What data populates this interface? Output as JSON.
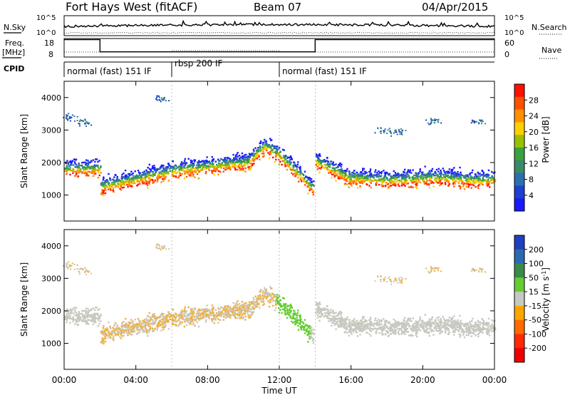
{
  "header": {
    "radar": "Fort Hays West (fitACF)",
    "beam": "Beam 07",
    "date": "04/Apr/2015"
  },
  "chart_data": [
    {
      "type": "line",
      "name": "noise-panel",
      "left_label": "N.Sky",
      "right_label": "N.Search",
      "left_ticks": [
        "10^5",
        "10^0"
      ],
      "right_ticks": [
        "10^5",
        "10^0"
      ]
    },
    {
      "type": "line",
      "name": "frequency-nave-panel",
      "left_label_1": "Freq.",
      "left_label_2": "[MHz]",
      "right_label": "Nave",
      "left_ticks": [
        18,
        8
      ],
      "right_ticks": [
        60,
        0
      ],
      "freq_ylim": [
        8,
        18
      ],
      "freq_steps": [
        {
          "t_start": 0,
          "t_end": 2,
          "mhz": 17.4
        },
        {
          "t_start": 2,
          "t_end": 14,
          "mhz": 10.8
        },
        {
          "t_start": 14,
          "t_end": 24,
          "mhz": 17.4
        }
      ]
    },
    {
      "type": "table",
      "name": "cpid-bar",
      "label": "CPID",
      "segments": [
        {
          "t_start": 0,
          "t_end": 6,
          "text": "normal (fast) 151 IF"
        },
        {
          "t_start": 6,
          "t_end": 12,
          "text": "rbsp 200 IF"
        },
        {
          "t_start": 12,
          "t_end": 24,
          "text": "normal (fast) 151 IF"
        }
      ]
    },
    {
      "type": "heatmap",
      "name": "power-panel",
      "ylabel": "Slant Range [km]",
      "ylim": [
        200,
        4500
      ],
      "yticks": [
        1000,
        2000,
        3000,
        4000
      ],
      "colorbar_label": "Power [dB]",
      "colorbar_ticks": [
        28,
        24,
        20,
        16,
        12,
        8,
        4
      ],
      "colorbar_range": [
        0,
        32
      ],
      "colorbar_colors": [
        "#1a1aff",
        "#1f3fd0",
        "#2a6fb0",
        "#3a8a6a",
        "#3aa040",
        "#9ac000",
        "#ffd000",
        "#ff9000",
        "#ff5000",
        "#ff1000"
      ]
    },
    {
      "type": "heatmap",
      "name": "velocity-panel",
      "ylabel": "Slant Range [km]",
      "ylim": [
        200,
        4500
      ],
      "yticks": [
        1000,
        2000,
        3000,
        4000
      ],
      "colorbar_label": "Velocity [m s",
      "colorbar_label_sup": "-1",
      "colorbar_label_end": "]",
      "colorbar_ticks": [
        "200",
        "100",
        "50",
        "15",
        "-15",
        "-50",
        "-100",
        "-200"
      ],
      "colorbar_colors": [
        "#2040c0",
        "#2a6ab0",
        "#3a8a4a",
        "#66cc33",
        "#c8c8c0",
        "#ffa500",
        "#ff6a00",
        "#ff2a00",
        "#ee0000"
      ]
    }
  ],
  "time_axis": {
    "label": "Time UT",
    "ticks": [
      "00:00",
      "04:00",
      "08:00",
      "12:00",
      "16:00",
      "20:00",
      "00:00"
    ],
    "xlim": [
      0,
      24
    ]
  }
}
